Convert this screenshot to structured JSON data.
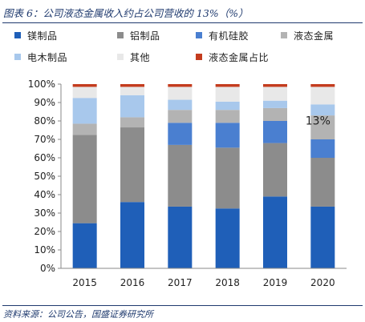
{
  "page": {
    "title": "图表 6：公司液态金属收入约占公司营收的 13%（%）",
    "source": "资料来源：公司公告，国盛证券研究所"
  },
  "chart_data": {
    "type": "bar",
    "stacked": true,
    "categories": [
      "2015",
      "2016",
      "2017",
      "2018",
      "2019",
      "2020"
    ],
    "ylim": [
      0,
      100
    ],
    "yticks": [
      "0%",
      "10%",
      "20%",
      "30%",
      "40%",
      "50%",
      "60%",
      "70%",
      "80%",
      "90%",
      "100%"
    ],
    "grid": false,
    "legend_position": "top",
    "series": [
      {
        "name": "镁制品",
        "color": "#1f5fb8",
        "values": [
          24.5,
          36,
          33.5,
          32.5,
          39,
          33.5
        ]
      },
      {
        "name": "铝制品",
        "color": "#8c8c8c",
        "values": [
          48,
          40.5,
          33.5,
          33,
          29,
          26.5
        ]
      },
      {
        "name": "有机硅胶",
        "color": "#4a7fd0",
        "values": [
          0,
          0,
          12,
          13.5,
          12,
          10
        ]
      },
      {
        "name": "液态金属",
        "color": "#b3b3b3",
        "values": [
          6,
          5.5,
          7,
          7,
          7,
          13
        ]
      },
      {
        "name": "电木制品",
        "color": "#a8c8ec",
        "values": [
          14,
          12,
          5.5,
          4.5,
          4,
          6
        ]
      },
      {
        "name": "其他",
        "color": "#e8e8e8",
        "values": [
          6,
          4.5,
          7,
          8,
          7.5,
          9.5
        ]
      },
      {
        "name": "液态金属占比",
        "color": "#c43c1e",
        "values": [
          1.5,
          1.5,
          1.5,
          1.5,
          1.5,
          1.5
        ]
      }
    ],
    "annotations": [
      {
        "text": "13%",
        "category": "2020"
      }
    ]
  }
}
